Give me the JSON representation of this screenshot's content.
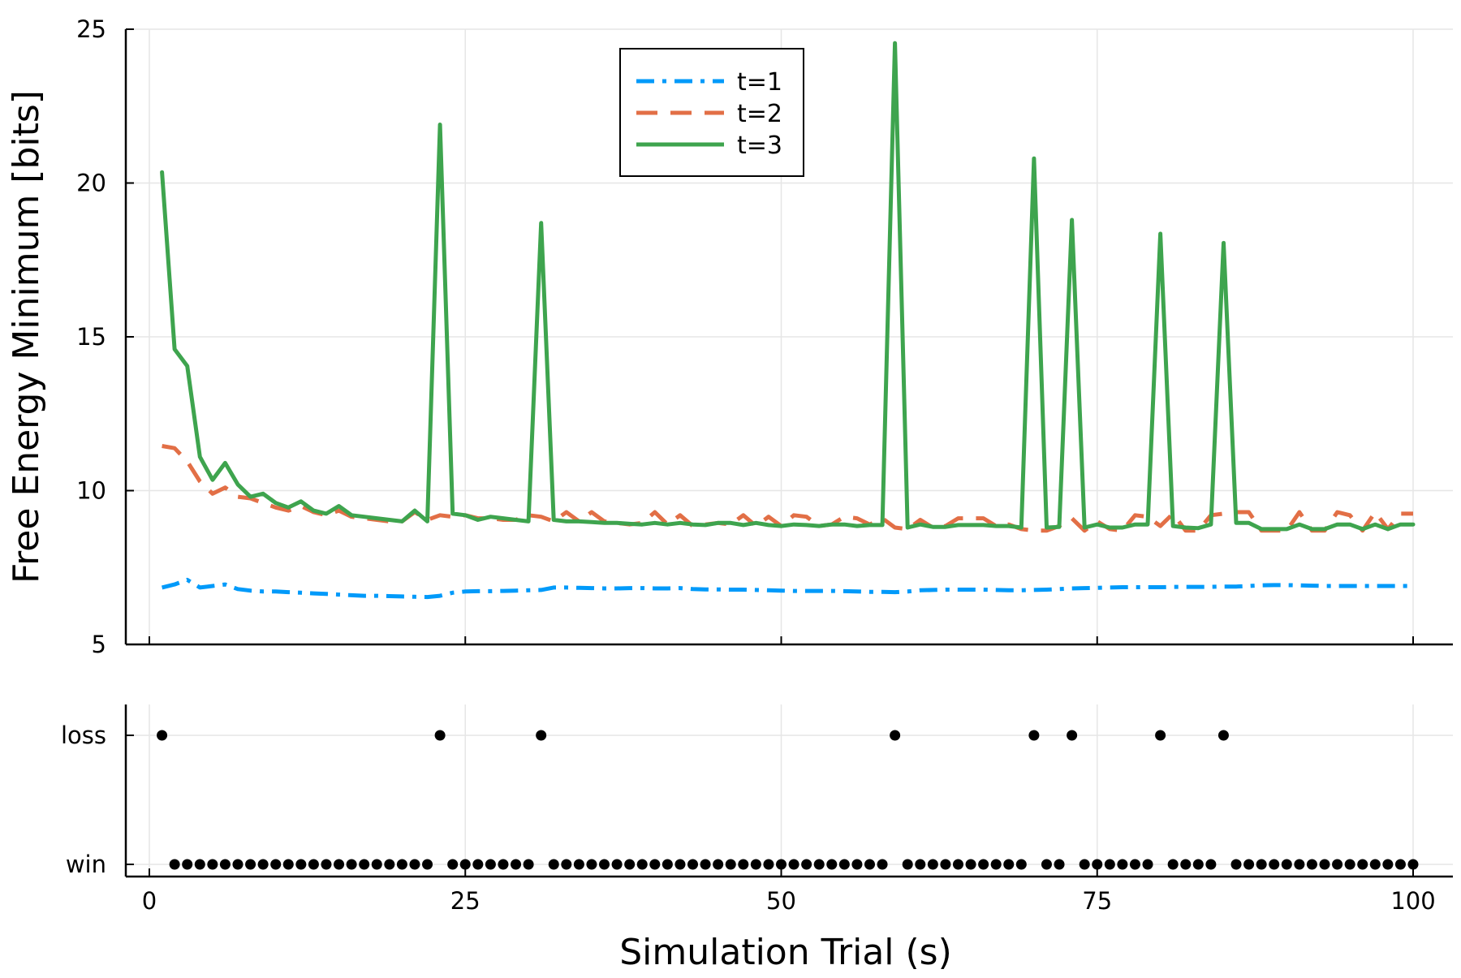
{
  "chart_data": [
    {
      "type": "line",
      "title": "",
      "xlabel": "",
      "ylabel": "Free Energy Minimum [bits]",
      "xlim": [
        0,
        100
      ],
      "ylim": [
        5,
        25
      ],
      "x_ticks": [
        0,
        25,
        50,
        75,
        100
      ],
      "x_tick_labels_shown": false,
      "y_ticks": [
        5,
        10,
        15,
        20,
        25
      ],
      "y_tick_labels": [
        "5",
        "10",
        "15",
        "20",
        "25"
      ],
      "grid": true,
      "legend": {
        "placement": "top-center"
      },
      "series": [
        {
          "name": "t=1",
          "color": "#009AFA",
          "style": "dashdot",
          "x": [
            1,
            2,
            3,
            4,
            5,
            6,
            7,
            8,
            9,
            10,
            11,
            12,
            13,
            14,
            15,
            16,
            17,
            18,
            19,
            20,
            21,
            22,
            23,
            24,
            25,
            26,
            27,
            28,
            29,
            30,
            31,
            32,
            33,
            34,
            35,
            36,
            37,
            38,
            39,
            40,
            41,
            42,
            43,
            44,
            45,
            46,
            47,
            48,
            49,
            50,
            51,
            52,
            53,
            54,
            55,
            56,
            57,
            58,
            59,
            60,
            61,
            62,
            63,
            64,
            65,
            66,
            67,
            68,
            69,
            70,
            71,
            72,
            73,
            74,
            75,
            76,
            77,
            78,
            79,
            80,
            81,
            82,
            83,
            84,
            85,
            86,
            87,
            88,
            89,
            90,
            91,
            92,
            93,
            94,
            95,
            96,
            97,
            98,
            99,
            100
          ],
          "values": [
            6.85,
            6.95,
            7.1,
            6.85,
            6.9,
            6.95,
            6.8,
            6.75,
            6.72,
            6.72,
            6.7,
            6.68,
            6.66,
            6.64,
            6.62,
            6.6,
            6.58,
            6.58,
            6.57,
            6.56,
            6.55,
            6.54,
            6.58,
            6.68,
            6.72,
            6.73,
            6.73,
            6.74,
            6.75,
            6.76,
            6.77,
            6.85,
            6.85,
            6.84,
            6.83,
            6.82,
            6.82,
            6.83,
            6.83,
            6.82,
            6.82,
            6.83,
            6.8,
            6.79,
            6.79,
            6.78,
            6.78,
            6.77,
            6.76,
            6.75,
            6.74,
            6.74,
            6.74,
            6.74,
            6.73,
            6.72,
            6.71,
            6.71,
            6.7,
            6.72,
            6.76,
            6.77,
            6.78,
            6.78,
            6.78,
            6.78,
            6.77,
            6.76,
            6.76,
            6.77,
            6.78,
            6.8,
            6.82,
            6.83,
            6.84,
            6.85,
            6.86,
            6.86,
            6.86,
            6.86,
            6.87,
            6.87,
            6.87,
            6.87,
            6.88,
            6.88,
            6.9,
            6.92,
            6.93,
            6.93,
            6.92,
            6.91,
            6.9,
            6.9,
            6.9,
            6.9,
            6.9,
            6.9,
            6.9,
            6.9
          ]
        },
        {
          "name": "t=2",
          "color": "#E26F46",
          "style": "dash",
          "x": [
            1,
            2,
            3,
            4,
            5,
            6,
            7,
            8,
            9,
            10,
            11,
            12,
            13,
            14,
            15,
            16,
            17,
            18,
            19,
            20,
            21,
            22,
            23,
            24,
            25,
            26,
            27,
            28,
            29,
            30,
            31,
            32,
            33,
            34,
            35,
            36,
            37,
            38,
            39,
            40,
            41,
            42,
            43,
            44,
            45,
            46,
            47,
            48,
            49,
            50,
            51,
            52,
            53,
            54,
            55,
            56,
            57,
            58,
            59,
            60,
            61,
            62,
            63,
            64,
            65,
            66,
            67,
            68,
            69,
            70,
            71,
            72,
            73,
            74,
            75,
            76,
            77,
            78,
            79,
            80,
            81,
            82,
            83,
            84,
            85,
            86,
            87,
            88,
            89,
            90,
            91,
            92,
            93,
            94,
            95,
            96,
            97,
            98,
            99,
            100
          ],
          "values": [
            11.45,
            11.38,
            10.95,
            10.3,
            9.9,
            10.1,
            9.8,
            9.75,
            9.6,
            9.45,
            9.35,
            9.5,
            9.3,
            9.2,
            9.35,
            9.15,
            9.1,
            9.05,
            9.0,
            9.0,
            9.3,
            9.05,
            9.2,
            9.15,
            9.2,
            9.1,
            9.1,
            9.05,
            9.05,
            9.2,
            9.15,
            9.0,
            9.3,
            9.0,
            9.3,
            9.0,
            8.95,
            8.9,
            8.95,
            9.3,
            8.9,
            9.2,
            8.85,
            8.9,
            8.95,
            8.9,
            9.2,
            8.85,
            9.15,
            8.85,
            9.2,
            9.15,
            8.85,
            8.9,
            9.15,
            9.1,
            8.9,
            9.1,
            8.8,
            8.75,
            9.05,
            8.8,
            8.85,
            9.1,
            9.1,
            9.1,
            8.85,
            8.9,
            8.75,
            8.7,
            8.7,
            8.85,
            9.1,
            8.7,
            9.0,
            8.75,
            8.7,
            9.2,
            9.15,
            8.85,
            9.25,
            8.7,
            8.7,
            9.2,
            9.25,
            9.3,
            9.3,
            8.7,
            8.7,
            8.7,
            9.3,
            8.7,
            8.7,
            9.3,
            9.2,
            8.7,
            9.3,
            8.75,
            9.25,
            9.25
          ]
        },
        {
          "name": "t=3",
          "color": "#3EA44E",
          "style": "solid",
          "x": [
            1,
            2,
            3,
            4,
            5,
            6,
            7,
            8,
            9,
            10,
            11,
            12,
            13,
            14,
            15,
            16,
            17,
            18,
            19,
            20,
            21,
            22,
            23,
            24,
            25,
            26,
            27,
            28,
            29,
            30,
            31,
            32,
            33,
            34,
            35,
            36,
            37,
            38,
            39,
            40,
            41,
            42,
            43,
            44,
            45,
            46,
            47,
            48,
            49,
            50,
            51,
            52,
            53,
            54,
            55,
            56,
            57,
            58,
            59,
            60,
            61,
            62,
            63,
            64,
            65,
            66,
            67,
            68,
            69,
            70,
            71,
            72,
            73,
            74,
            75,
            76,
            77,
            78,
            79,
            80,
            81,
            82,
            83,
            84,
            85,
            86,
            87,
            88,
            89,
            90,
            91,
            92,
            93,
            94,
            95,
            96,
            97,
            98,
            99,
            100
          ],
          "values": [
            20.35,
            14.6,
            14.05,
            11.1,
            10.35,
            10.9,
            10.2,
            9.8,
            9.9,
            9.6,
            9.45,
            9.65,
            9.35,
            9.25,
            9.5,
            9.2,
            9.15,
            9.1,
            9.05,
            9.0,
            9.35,
            9.0,
            21.9,
            9.25,
            9.2,
            9.05,
            9.15,
            9.1,
            9.05,
            9.0,
            18.7,
            9.05,
            9.0,
            9.0,
            8.98,
            8.95,
            8.95,
            8.92,
            8.9,
            8.95,
            8.9,
            8.95,
            8.9,
            8.88,
            8.95,
            8.95,
            8.88,
            8.95,
            8.88,
            8.85,
            8.9,
            8.88,
            8.85,
            8.9,
            8.9,
            8.85,
            8.88,
            8.88,
            24.55,
            8.8,
            8.9,
            8.82,
            8.82,
            8.88,
            8.88,
            8.88,
            8.85,
            8.85,
            8.8,
            20.8,
            8.8,
            8.82,
            18.8,
            8.8,
            8.9,
            8.8,
            8.8,
            8.9,
            8.9,
            18.35,
            8.85,
            8.8,
            8.78,
            8.9,
            18.05,
            8.95,
            8.95,
            8.75,
            8.75,
            8.75,
            8.9,
            8.75,
            8.75,
            8.9,
            8.9,
            8.75,
            8.9,
            8.75,
            8.9,
            8.9
          ]
        }
      ]
    },
    {
      "type": "scatter",
      "title": "",
      "xlabel": "Simulation Trial (s)",
      "ylabel": "",
      "xlim": [
        0,
        100
      ],
      "x_ticks": [
        0,
        25,
        50,
        75,
        100
      ],
      "x_tick_labels": [
        "0",
        "25",
        "50",
        "75",
        "100"
      ],
      "y_categories": [
        "win",
        "loss"
      ],
      "grid": true,
      "color": "#000000",
      "x": [
        1,
        2,
        3,
        4,
        5,
        6,
        7,
        8,
        9,
        10,
        11,
        12,
        13,
        14,
        15,
        16,
        17,
        18,
        19,
        20,
        21,
        22,
        23,
        24,
        25,
        26,
        27,
        28,
        29,
        30,
        31,
        32,
        33,
        34,
        35,
        36,
        37,
        38,
        39,
        40,
        41,
        42,
        43,
        44,
        45,
        46,
        47,
        48,
        49,
        50,
        51,
        52,
        53,
        54,
        55,
        56,
        57,
        58,
        59,
        60,
        61,
        62,
        63,
        64,
        65,
        66,
        67,
        68,
        69,
        70,
        71,
        72,
        73,
        74,
        75,
        76,
        77,
        78,
        79,
        80,
        81,
        82,
        83,
        84,
        85,
        86,
        87,
        88,
        89,
        90,
        91,
        92,
        93,
        94,
        95,
        96,
        97,
        98,
        99,
        100
      ],
      "values": [
        "loss",
        "win",
        "win",
        "win",
        "win",
        "win",
        "win",
        "win",
        "win",
        "win",
        "win",
        "win",
        "win",
        "win",
        "win",
        "win",
        "win",
        "win",
        "win",
        "win",
        "win",
        "win",
        "loss",
        "win",
        "win",
        "win",
        "win",
        "win",
        "win",
        "win",
        "loss",
        "win",
        "win",
        "win",
        "win",
        "win",
        "win",
        "win",
        "win",
        "win",
        "win",
        "win",
        "win",
        "win",
        "win",
        "win",
        "win",
        "win",
        "win",
        "win",
        "win",
        "win",
        "win",
        "win",
        "win",
        "win",
        "win",
        "win",
        "loss",
        "win",
        "win",
        "win",
        "win",
        "win",
        "win",
        "win",
        "win",
        "win",
        "win",
        "loss",
        "win",
        "win",
        "loss",
        "win",
        "win",
        "win",
        "win",
        "win",
        "win",
        "loss",
        "win",
        "win",
        "win",
        "win",
        "loss",
        "win",
        "win",
        "win",
        "win",
        "win",
        "win",
        "win",
        "win",
        "win",
        "win",
        "win",
        "win",
        "win",
        "win",
        "win"
      ]
    }
  ]
}
